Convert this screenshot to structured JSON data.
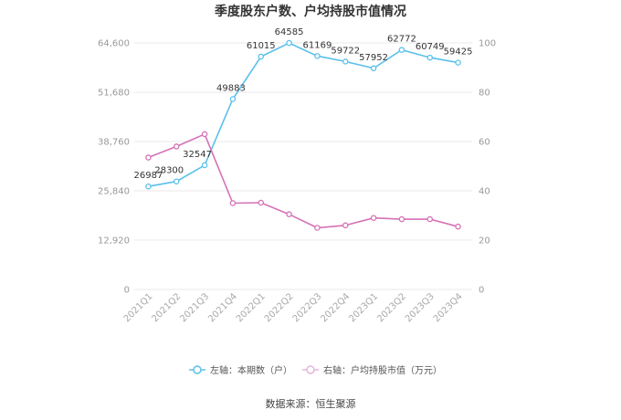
{
  "chart_data": {
    "type": "line",
    "title": "季度股东户数、户均持股市值情况",
    "categories": [
      "2021Q1",
      "2021Q2",
      "2021Q3",
      "2021Q4",
      "2022Q1",
      "2022Q2",
      "2022Q3",
      "2022Q4",
      "2023Q1",
      "2023Q2",
      "2023Q3",
      "2023Q4"
    ],
    "left_axis": {
      "ticks": [
        "0",
        "12,920",
        "25,840",
        "38,760",
        "51,680",
        "64,600"
      ],
      "range": [
        0,
        64600
      ]
    },
    "right_axis": {
      "ticks": [
        "0",
        "20",
        "40",
        "60",
        "80",
        "100"
      ],
      "range": [
        0,
        100
      ]
    },
    "series": [
      {
        "name": "左轴：本期数（户）",
        "axis": "left",
        "color": "#5bc0eb",
        "values": [
          26987,
          28300,
          32547,
          49883,
          61015,
          64585,
          61169,
          59722,
          57952,
          62772,
          60749,
          59425
        ],
        "labels": [
          "26987",
          "28300",
          "32547",
          "49883",
          "61015",
          "64585",
          "61169",
          "59722",
          "57952",
          "62772",
          "60749",
          "59425"
        ]
      },
      {
        "name": "右轴：户均持股市值（万元）",
        "axis": "right",
        "color": "#d472b6",
        "values": [
          53.5,
          58,
          63,
          35,
          35.2,
          30.5,
          25,
          26,
          29,
          28.5,
          28.5,
          25.5
        ]
      }
    ],
    "grid": true,
    "legend": "bottom-center"
  },
  "source": "数据来源：恒生聚源"
}
